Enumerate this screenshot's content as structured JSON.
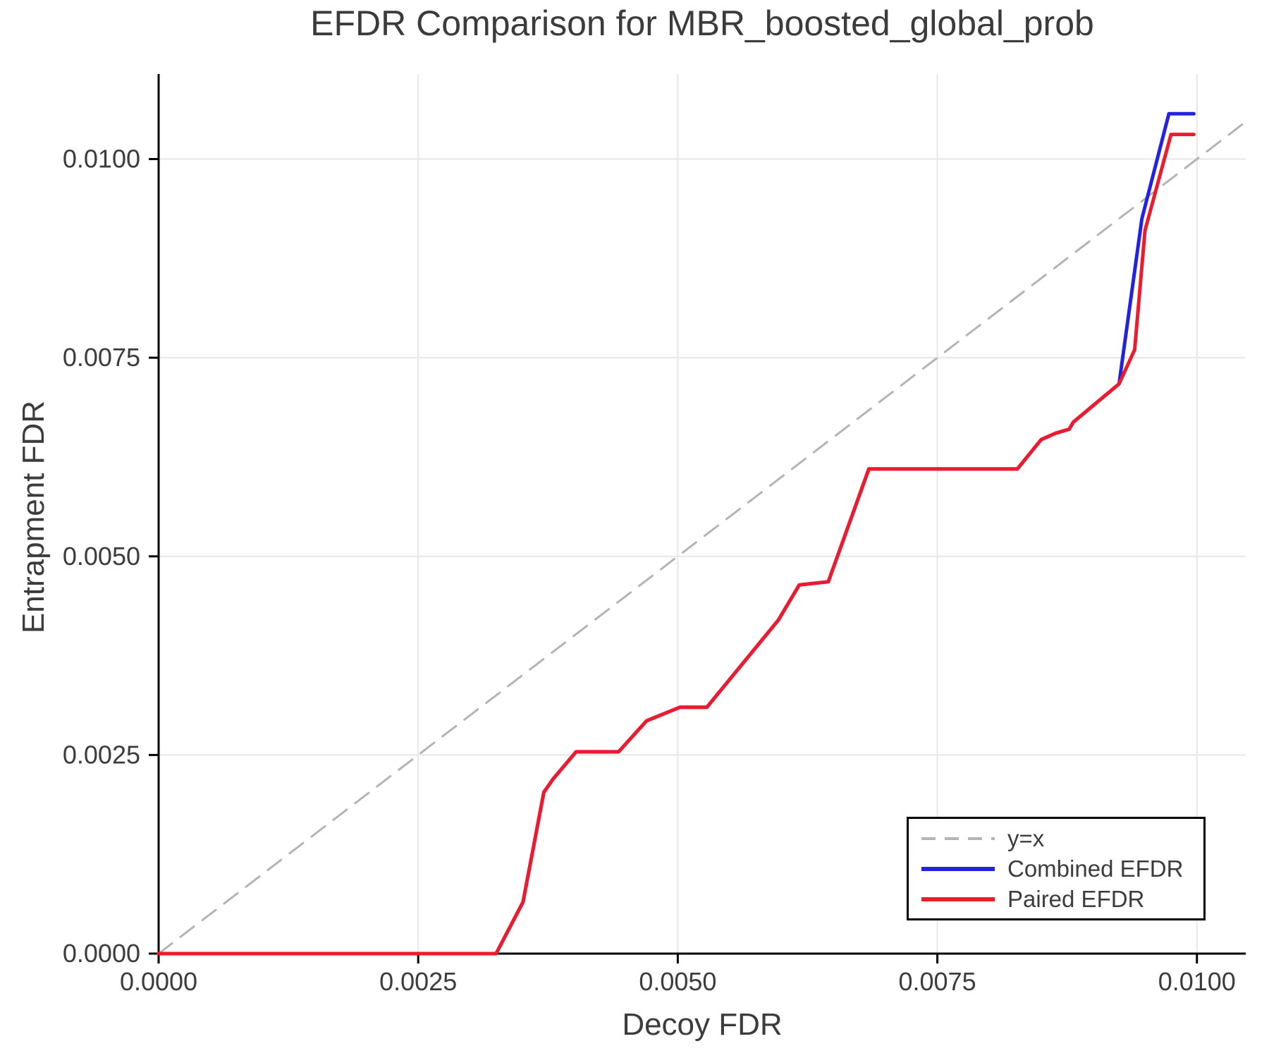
{
  "title": "EFDR Comparison for MBR_boosted_global_prob",
  "colors": {
    "combined": "#2222e0",
    "paired": "#ee1b2d",
    "identity": "#b4b4b4",
    "grid": "#e7e7e7",
    "spine": "#000000",
    "text": "#3c3c3c"
  },
  "axes": {
    "x": {
      "label": "Decoy FDR",
      "tick_labels": [
        "0.0000",
        "0.0025",
        "0.0050",
        "0.0075",
        "0.0100"
      ],
      "tick_values": [
        0,
        0.0025,
        0.005,
        0.0075,
        0.01
      ]
    },
    "y": {
      "label": "Entrapment FDR",
      "tick_labels": [
        "0.0000",
        "0.0025",
        "0.0050",
        "0.0075",
        "0.0100"
      ],
      "tick_values": [
        0,
        0.0025,
        0.005,
        0.0075,
        0.01
      ]
    }
  },
  "legend": {
    "items": [
      {
        "label": "y=x",
        "color": "#b4b4b4",
        "dashed": true
      },
      {
        "label": "Combined EFDR",
        "color": "#2222e0",
        "dashed": false
      },
      {
        "label": "Paired EFDR",
        "color": "#ee1b2d",
        "dashed": false
      }
    ]
  },
  "chart_data": {
    "type": "line",
    "title": "EFDR Comparison for MBR_boosted_global_prob",
    "xlabel": "Decoy FDR",
    "ylabel": "Entrapment FDR",
    "xlim": [
      0,
      0.01047
    ],
    "ylim": [
      0,
      0.01107
    ],
    "grid": true,
    "legend_position": "lower right",
    "series": [
      {
        "name": "y=x",
        "color": "#b4b4b4",
        "style": "dashed",
        "width": 3,
        "points": [
          [
            0,
            0
          ],
          [
            0.01047,
            0.01047
          ]
        ]
      },
      {
        "name": "Combined EFDR",
        "color": "#2222e0",
        "style": "solid",
        "width": 5,
        "points": [
          [
            0.0,
            0.0
          ],
          [
            0.00325,
            0.0
          ],
          [
            0.00351,
            0.00065
          ],
          [
            0.00371,
            0.00203
          ],
          [
            0.0038,
            0.0022
          ],
          [
            0.00402,
            0.00254
          ],
          [
            0.00443,
            0.00254
          ],
          [
            0.0047,
            0.00293
          ],
          [
            0.00502,
            0.0031
          ],
          [
            0.00528,
            0.0031
          ],
          [
            0.00597,
            0.0042
          ],
          [
            0.00617,
            0.00464
          ],
          [
            0.00645,
            0.00468
          ],
          [
            0.00684,
            0.0061
          ],
          [
            0.00827,
            0.0061
          ],
          [
            0.0085,
            0.00647
          ],
          [
            0.00864,
            0.00655
          ],
          [
            0.00877,
            0.0066
          ],
          [
            0.00881,
            0.00669
          ],
          [
            0.00925,
            0.00717
          ],
          [
            0.00947,
            0.00925
          ],
          [
            0.00973,
            0.01057
          ],
          [
            0.00997,
            0.01057
          ]
        ]
      },
      {
        "name": "Paired EFDR",
        "color": "#ee1b2d",
        "style": "solid",
        "width": 5,
        "points": [
          [
            0.0,
            0.0
          ],
          [
            0.00325,
            0.0
          ],
          [
            0.00351,
            0.00065
          ],
          [
            0.00371,
            0.00203
          ],
          [
            0.0038,
            0.0022
          ],
          [
            0.00402,
            0.00254
          ],
          [
            0.00443,
            0.00254
          ],
          [
            0.0047,
            0.00293
          ],
          [
            0.00502,
            0.0031
          ],
          [
            0.00528,
            0.0031
          ],
          [
            0.00597,
            0.0042
          ],
          [
            0.00617,
            0.00464
          ],
          [
            0.00645,
            0.00468
          ],
          [
            0.00684,
            0.0061
          ],
          [
            0.00827,
            0.0061
          ],
          [
            0.0085,
            0.00647
          ],
          [
            0.00864,
            0.00655
          ],
          [
            0.00877,
            0.0066
          ],
          [
            0.00881,
            0.00669
          ],
          [
            0.00925,
            0.00717
          ],
          [
            0.0094,
            0.0076
          ],
          [
            0.0095,
            0.0091
          ],
          [
            0.00975,
            0.01031
          ],
          [
            0.00997,
            0.01031
          ]
        ]
      }
    ]
  }
}
